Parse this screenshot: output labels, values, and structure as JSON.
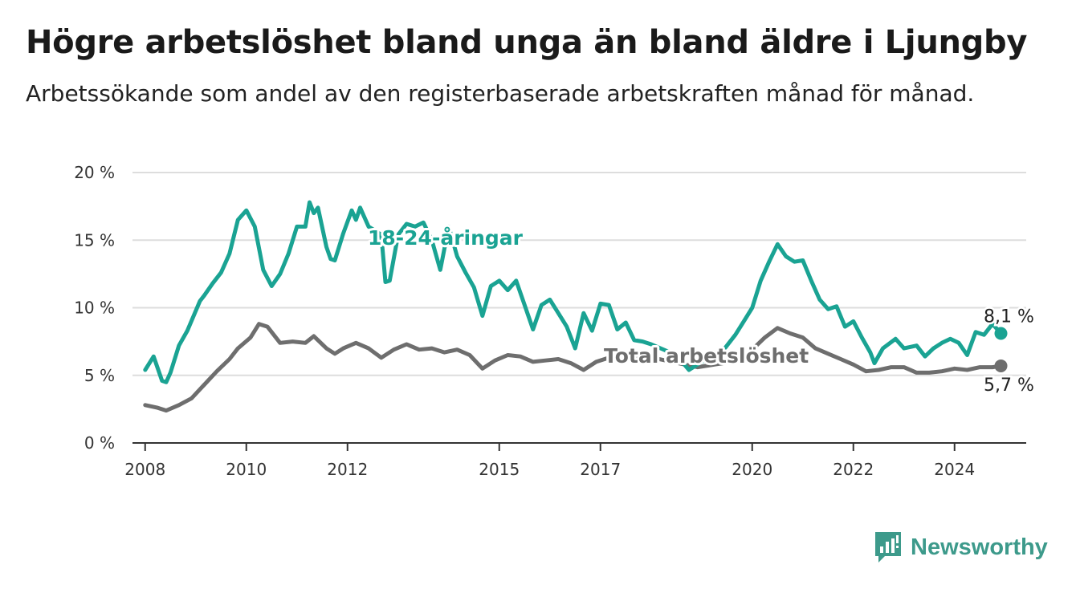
{
  "title": "Högre arbetslöshet bland unga än bland äldre i Ljungby",
  "subtitle": "Arbetssökande som andel av den registerbaserade arbetskraften månad för månad.",
  "brand": {
    "name": "Newsworthy",
    "color": "#3d9a8b",
    "icon": "newsworthy-logo-icon"
  },
  "colors": {
    "youth": "#1aa393",
    "total": "#6e6e6e",
    "grid": "#dddddd",
    "axis": "#333333"
  },
  "chart_data": {
    "type": "line",
    "ylim": [
      0,
      20
    ],
    "yticks": [
      0,
      5,
      10,
      15,
      20
    ],
    "ytick_labels": [
      "0 %",
      "5 %",
      "10 %",
      "15 %",
      "20 %"
    ],
    "xlim": [
      "2007-10",
      "2025-06"
    ],
    "xticks": [
      "2008-01",
      "2010-01",
      "2012-01",
      "2015-01",
      "2017-01",
      "2020-01",
      "2022-01",
      "2024-01"
    ],
    "xtick_labels": [
      "2008",
      "2010",
      "2012",
      "2015",
      "2017",
      "2020",
      "2022",
      "2024"
    ],
    "grid": true,
    "series": [
      {
        "name": "18-24-åringar",
        "key": "youth",
        "end_label": "8,1 %",
        "points": [
          [
            "2008-01",
            5.4
          ],
          [
            "2008-03",
            6.4
          ],
          [
            "2008-05",
            4.6
          ],
          [
            "2008-06",
            4.5
          ],
          [
            "2008-07",
            5.2
          ],
          [
            "2008-09",
            7.2
          ],
          [
            "2008-11",
            8.3
          ],
          [
            "2009-02",
            10.5
          ],
          [
            "2009-03",
            10.9
          ],
          [
            "2009-05",
            11.8
          ],
          [
            "2009-07",
            12.6
          ],
          [
            "2009-09",
            14.0
          ],
          [
            "2009-11",
            16.5
          ],
          [
            "2010-01",
            17.2
          ],
          [
            "2010-03",
            16.0
          ],
          [
            "2010-05",
            12.8
          ],
          [
            "2010-07",
            11.6
          ],
          [
            "2010-09",
            12.5
          ],
          [
            "2010-11",
            14.0
          ],
          [
            "2011-01",
            16.0
          ],
          [
            "2011-03",
            16.0
          ],
          [
            "2011-04",
            17.8
          ],
          [
            "2011-05",
            17.0
          ],
          [
            "2011-06",
            17.4
          ],
          [
            "2011-08",
            14.5
          ],
          [
            "2011-09",
            13.6
          ],
          [
            "2011-10",
            13.5
          ],
          [
            "2011-12",
            15.5
          ],
          [
            "2012-02",
            17.2
          ],
          [
            "2012-03",
            16.5
          ],
          [
            "2012-04",
            17.4
          ],
          [
            "2012-06",
            16.0
          ],
          [
            "2012-09",
            15.4
          ],
          [
            "2012-10",
            11.9
          ],
          [
            "2012-11",
            12.0
          ],
          [
            "2013-01",
            15.4
          ],
          [
            "2013-03",
            16.2
          ],
          [
            "2013-05",
            16.0
          ],
          [
            "2013-07",
            16.3
          ],
          [
            "2013-09",
            15.0
          ],
          [
            "2013-11",
            12.8
          ],
          [
            "2014-01",
            16.0
          ],
          [
            "2014-03",
            13.8
          ],
          [
            "2014-05",
            12.6
          ],
          [
            "2014-07",
            11.5
          ],
          [
            "2014-09",
            9.4
          ],
          [
            "2014-11",
            11.6
          ],
          [
            "2015-01",
            12.0
          ],
          [
            "2015-03",
            11.3
          ],
          [
            "2015-05",
            12.0
          ],
          [
            "2015-07",
            10.2
          ],
          [
            "2015-09",
            8.4
          ],
          [
            "2015-11",
            10.2
          ],
          [
            "2016-01",
            10.6
          ],
          [
            "2016-03",
            9.6
          ],
          [
            "2016-05",
            8.6
          ],
          [
            "2016-07",
            7.0
          ],
          [
            "2016-09",
            9.6
          ],
          [
            "2016-11",
            8.3
          ],
          [
            "2017-01",
            10.3
          ],
          [
            "2017-03",
            10.2
          ],
          [
            "2017-05",
            8.4
          ],
          [
            "2017-07",
            8.9
          ],
          [
            "2017-09",
            7.6
          ],
          [
            "2017-11",
            7.5
          ],
          [
            "2018-01",
            7.3
          ],
          [
            "2018-07",
            6.5
          ],
          [
            "2018-10",
            5.4
          ],
          [
            "2019-01",
            6.0
          ],
          [
            "2019-06",
            6.8
          ],
          [
            "2019-09",
            8.0
          ],
          [
            "2019-11",
            9.0
          ],
          [
            "2020-01",
            10.0
          ],
          [
            "2020-03",
            12.0
          ],
          [
            "2020-05",
            13.4
          ],
          [
            "2020-07",
            14.7
          ],
          [
            "2020-09",
            13.8
          ],
          [
            "2020-11",
            13.4
          ],
          [
            "2021-01",
            13.5
          ],
          [
            "2021-03",
            12.0
          ],
          [
            "2021-05",
            10.6
          ],
          [
            "2021-07",
            9.9
          ],
          [
            "2021-09",
            10.1
          ],
          [
            "2021-11",
            8.6
          ],
          [
            "2022-01",
            9.0
          ],
          [
            "2022-03",
            7.8
          ],
          [
            "2022-05",
            6.7
          ],
          [
            "2022-06",
            5.9
          ],
          [
            "2022-08",
            7.0
          ],
          [
            "2022-11",
            7.7
          ],
          [
            "2023-01",
            7.0
          ],
          [
            "2023-04",
            7.2
          ],
          [
            "2023-06",
            6.4
          ],
          [
            "2023-08",
            7.0
          ],
          [
            "2023-10",
            7.4
          ],
          [
            "2023-12",
            7.7
          ],
          [
            "2024-02",
            7.4
          ],
          [
            "2024-04",
            6.5
          ],
          [
            "2024-06",
            8.2
          ],
          [
            "2024-08",
            8.0
          ],
          [
            "2024-10",
            8.8
          ],
          [
            "2024-12",
            8.1
          ]
        ]
      },
      {
        "name": "Total arbetslöshet",
        "key": "total",
        "end_label": "5,7 %",
        "points": [
          [
            "2008-01",
            2.8
          ],
          [
            "2008-04",
            2.6
          ],
          [
            "2008-06",
            2.4
          ],
          [
            "2008-09",
            2.8
          ],
          [
            "2008-12",
            3.3
          ],
          [
            "2009-03",
            4.3
          ],
          [
            "2009-06",
            5.3
          ],
          [
            "2009-09",
            6.2
          ],
          [
            "2009-11",
            7.0
          ],
          [
            "2010-02",
            7.8
          ],
          [
            "2010-04",
            8.8
          ],
          [
            "2010-06",
            8.6
          ],
          [
            "2010-09",
            7.4
          ],
          [
            "2010-12",
            7.5
          ],
          [
            "2011-03",
            7.4
          ],
          [
            "2011-05",
            7.9
          ],
          [
            "2011-08",
            7.0
          ],
          [
            "2011-10",
            6.6
          ],
          [
            "2011-12",
            7.0
          ],
          [
            "2012-03",
            7.4
          ],
          [
            "2012-06",
            7.0
          ],
          [
            "2012-09",
            6.3
          ],
          [
            "2012-12",
            6.9
          ],
          [
            "2013-03",
            7.3
          ],
          [
            "2013-06",
            6.9
          ],
          [
            "2013-09",
            7.0
          ],
          [
            "2013-12",
            6.7
          ],
          [
            "2014-03",
            6.9
          ],
          [
            "2014-06",
            6.5
          ],
          [
            "2014-09",
            5.5
          ],
          [
            "2014-12",
            6.1
          ],
          [
            "2015-03",
            6.5
          ],
          [
            "2015-06",
            6.4
          ],
          [
            "2015-09",
            6.0
          ],
          [
            "2015-12",
            6.1
          ],
          [
            "2016-03",
            6.2
          ],
          [
            "2016-06",
            5.9
          ],
          [
            "2016-09",
            5.4
          ],
          [
            "2016-12",
            6.0
          ],
          [
            "2017-03",
            6.3
          ],
          [
            "2017-06",
            6.5
          ],
          [
            "2017-12",
            6.4
          ],
          [
            "2018-06",
            6.0
          ],
          [
            "2018-12",
            5.6
          ],
          [
            "2019-06",
            5.9
          ],
          [
            "2019-12",
            6.6
          ],
          [
            "2020-04",
            7.8
          ],
          [
            "2020-07",
            8.5
          ],
          [
            "2020-10",
            8.1
          ],
          [
            "2021-01",
            7.8
          ],
          [
            "2021-04",
            7.0
          ],
          [
            "2021-07",
            6.6
          ],
          [
            "2021-10",
            6.2
          ],
          [
            "2022-01",
            5.8
          ],
          [
            "2022-04",
            5.3
          ],
          [
            "2022-07",
            5.4
          ],
          [
            "2022-10",
            5.6
          ],
          [
            "2023-01",
            5.6
          ],
          [
            "2023-04",
            5.2
          ],
          [
            "2023-07",
            5.2
          ],
          [
            "2023-10",
            5.3
          ],
          [
            "2024-01",
            5.5
          ],
          [
            "2024-04",
            5.4
          ],
          [
            "2024-07",
            5.6
          ],
          [
            "2024-10",
            5.6
          ],
          [
            "2024-12",
            5.7
          ]
        ]
      }
    ]
  }
}
